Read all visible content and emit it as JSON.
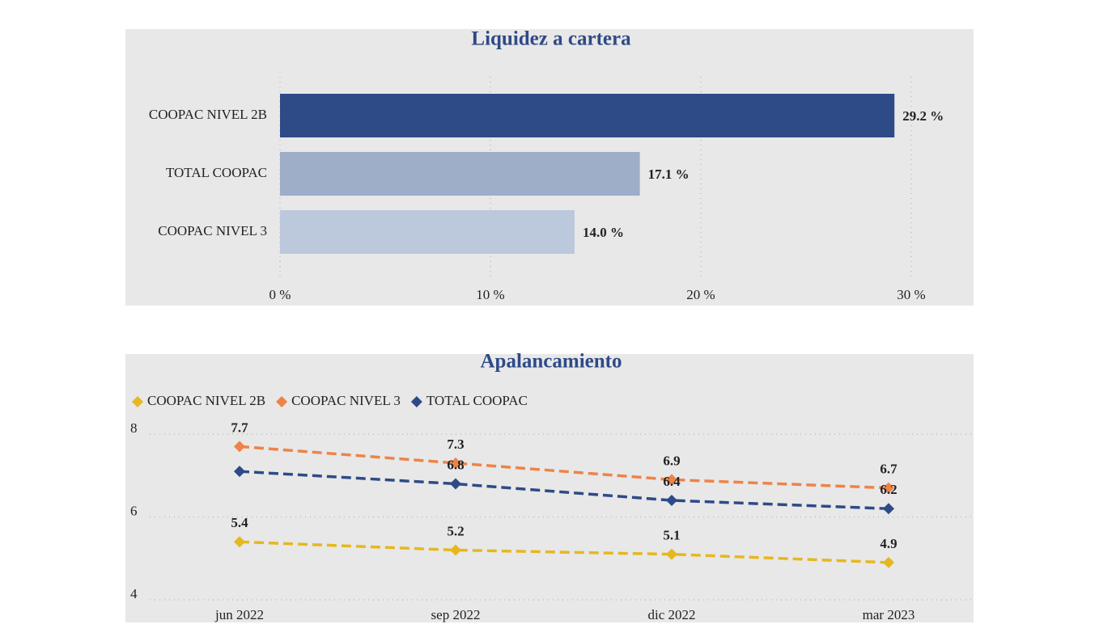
{
  "chart_data": [
    {
      "type": "bar",
      "orientation": "horizontal",
      "title": "Liquidez a cartera",
      "categories": [
        "COOPAC NIVEL 2B",
        "TOTAL COOPAC",
        "COOPAC NIVEL 3"
      ],
      "values": [
        29.2,
        17.1,
        14.0
      ],
      "value_labels": [
        "29.2 %",
        "17.1 %",
        "14.0 %"
      ],
      "colors": [
        "#2e4a87",
        "#9eadc8",
        "#bcc8dc"
      ],
      "xlim": [
        0,
        30
      ],
      "xticks": [
        {
          "value": 0,
          "label": "0 %"
        },
        {
          "value": 10,
          "label": "10 %"
        },
        {
          "value": 20,
          "label": "20 %"
        },
        {
          "value": 30,
          "label": "30 %"
        }
      ],
      "grid": true
    },
    {
      "type": "line",
      "title": "Apalancamiento",
      "categories": [
        "jun 2022",
        "sep 2022",
        "dic 2022",
        "mar 2023"
      ],
      "series": [
        {
          "name": "COOPAC NIVEL 2B",
          "color": "#e6b81e",
          "values": [
            5.4,
            5.2,
            5.1,
            4.9
          ]
        },
        {
          "name": "COOPAC NIVEL 3",
          "color": "#ee8348",
          "values": [
            7.7,
            7.3,
            6.9,
            6.7
          ]
        },
        {
          "name": "TOTAL COOPAC",
          "color": "#2e4a87",
          "values": [
            7.1,
            6.8,
            6.4,
            6.2
          ],
          "value_labels": [
            null,
            "6.8",
            "6.4",
            "6.2"
          ]
        }
      ],
      "ylim": [
        4,
        8
      ],
      "yticks": [
        4,
        6,
        8
      ],
      "grid": true,
      "legend": "top-left",
      "line_style": "dashed"
    }
  ]
}
